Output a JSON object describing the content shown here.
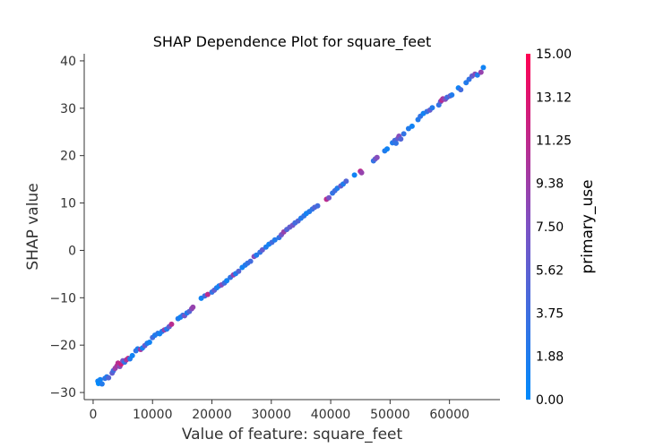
{
  "chart_data": {
    "type": "scatter",
    "title": "SHAP Dependence Plot for square_feet",
    "xlabel": "Value of feature: square_feet",
    "ylabel": "SHAP value",
    "xlim": [
      -1500,
      68500
    ],
    "ylim": [
      -31.5,
      41.5
    ],
    "xticks": [
      0,
      10000,
      20000,
      30000,
      40000,
      50000,
      60000
    ],
    "yticks": [
      -30,
      -20,
      -10,
      0,
      10,
      20,
      30,
      40
    ],
    "grid": false,
    "colorbar": {
      "label": "primary_use",
      "range": [
        0,
        15
      ],
      "ticks": [
        "0.00",
        "1.88",
        "3.75",
        "5.62",
        "7.50",
        "9.38",
        "11.25",
        "13.12",
        "15.00"
      ],
      "colors": {
        "low": "#008afb",
        "mid": "#7c52c4",
        "high": "#ff0052"
      }
    },
    "points": [
      [
        800,
        -27.6,
        1
      ],
      [
        900,
        -28.1,
        0
      ],
      [
        1200,
        -27.3,
        1
      ],
      [
        1500,
        -28.2,
        2
      ],
      [
        2000,
        -27.0,
        3
      ],
      [
        2300,
        -26.7,
        2
      ],
      [
        2600,
        -26.9,
        5
      ],
      [
        3200,
        -25.9,
        6
      ],
      [
        3400,
        -25.4,
        4
      ],
      [
        3700,
        -24.9,
        9
      ],
      [
        4000,
        -24.4,
        10
      ],
      [
        4200,
        -23.8,
        11
      ],
      [
        4500,
        -24.5,
        8
      ],
      [
        4700,
        -24.0,
        12
      ],
      [
        5000,
        -23.3,
        7
      ],
      [
        5300,
        -23.6,
        3
      ],
      [
        5600,
        -23.1,
        10
      ],
      [
        5900,
        -22.8,
        11
      ],
      [
        6200,
        -22.9,
        2
      ],
      [
        6600,
        -22.2,
        1
      ],
      [
        7200,
        -21.2,
        3
      ],
      [
        7500,
        -20.8,
        2
      ],
      [
        8000,
        -20.9,
        10
      ],
      [
        8300,
        -20.6,
        1
      ],
      [
        8700,
        -20.1,
        6
      ],
      [
        9100,
        -19.6,
        2
      ],
      [
        9500,
        -19.4,
        1
      ],
      [
        10000,
        -18.4,
        4
      ],
      [
        10400,
        -17.9,
        2
      ],
      [
        10900,
        -17.5,
        3
      ],
      [
        11200,
        -17.6,
        1
      ],
      [
        11600,
        -17.1,
        2
      ],
      [
        12000,
        -16.8,
        9
      ],
      [
        12400,
        -16.6,
        2
      ],
      [
        12800,
        -16.1,
        6
      ],
      [
        13200,
        -15.6,
        11
      ],
      [
        14300,
        -14.4,
        2
      ],
      [
        14700,
        -14.1,
        1
      ],
      [
        15100,
        -13.7,
        3
      ],
      [
        15400,
        -13.8,
        7
      ],
      [
        15800,
        -13.2,
        2
      ],
      [
        16200,
        -12.9,
        5
      ],
      [
        16600,
        -12.3,
        8
      ],
      [
        16800,
        -12.0,
        9
      ],
      [
        18200,
        -10.1,
        1
      ],
      [
        18800,
        -9.6,
        4
      ],
      [
        19300,
        -9.3,
        11
      ],
      [
        20000,
        -8.8,
        3
      ],
      [
        20400,
        -8.4,
        6
      ],
      [
        20800,
        -7.9,
        2
      ],
      [
        21200,
        -7.5,
        1
      ],
      [
        21600,
        -7.3,
        8
      ],
      [
        22100,
        -6.9,
        4
      ],
      [
        22500,
        -6.4,
        1
      ],
      [
        23100,
        -5.7,
        3
      ],
      [
        23600,
        -5.2,
        9
      ],
      [
        24000,
        -4.9,
        2
      ],
      [
        24500,
        -4.4,
        5
      ],
      [
        25100,
        -3.6,
        1
      ],
      [
        25600,
        -3.1,
        2
      ],
      [
        26000,
        -2.7,
        3
      ],
      [
        26500,
        -2.3,
        4
      ],
      [
        27100,
        -1.3,
        8
      ],
      [
        27500,
        -1.0,
        2
      ],
      [
        28100,
        -0.4,
        3
      ],
      [
        28500,
        0.1,
        6
      ],
      [
        29100,
        0.7,
        2
      ],
      [
        29600,
        1.3,
        1
      ],
      [
        30100,
        1.7,
        4
      ],
      [
        30600,
        2.2,
        2
      ],
      [
        31300,
        2.7,
        3
      ],
      [
        31700,
        3.3,
        7
      ],
      [
        32100,
        3.9,
        9
      ],
      [
        32600,
        4.4,
        5
      ],
      [
        33100,
        4.9,
        6
      ],
      [
        33600,
        5.3,
        7
      ],
      [
        34000,
        5.8,
        4
      ],
      [
        34500,
        6.2,
        5
      ],
      [
        35000,
        6.8,
        2
      ],
      [
        35500,
        7.3,
        3
      ],
      [
        35900,
        7.8,
        1
      ],
      [
        36400,
        8.2,
        2
      ],
      [
        36900,
        8.7,
        3
      ],
      [
        37300,
        9.1,
        5
      ],
      [
        37800,
        9.4,
        4
      ],
      [
        39300,
        10.8,
        11
      ],
      [
        39700,
        11.1,
        7
      ],
      [
        40300,
        12.1,
        3
      ],
      [
        40700,
        12.6,
        4
      ],
      [
        41100,
        13.1,
        2
      ],
      [
        41700,
        13.6,
        6
      ],
      [
        42100,
        14.0,
        2
      ],
      [
        42600,
        14.6,
        5
      ],
      [
        44000,
        15.9,
        1
      ],
      [
        45000,
        16.7,
        11
      ],
      [
        45200,
        16.4,
        9
      ],
      [
        47200,
        18.9,
        3
      ],
      [
        47500,
        19.3,
        6
      ],
      [
        47800,
        19.6,
        8
      ],
      [
        49100,
        21.0,
        2
      ],
      [
        49500,
        21.4,
        1
      ],
      [
        50400,
        22.7,
        2
      ],
      [
        50800,
        23.2,
        4
      ],
      [
        51000,
        22.6,
        3
      ],
      [
        51300,
        23.6,
        6
      ],
      [
        51500,
        24.1,
        8
      ],
      [
        51800,
        23.5,
        5
      ],
      [
        52300,
        24.6,
        3
      ],
      [
        53100,
        25.7,
        2
      ],
      [
        53700,
        26.2,
        1
      ],
      [
        54700,
        27.6,
        2
      ],
      [
        55100,
        28.3,
        3
      ],
      [
        55600,
        28.9,
        1
      ],
      [
        56200,
        29.3,
        3
      ],
      [
        56700,
        29.6,
        6
      ],
      [
        57100,
        30.1,
        2
      ],
      [
        58200,
        30.7,
        3
      ],
      [
        58500,
        31.4,
        6
      ],
      [
        58700,
        31.7,
        11
      ],
      [
        58900,
        32.0,
        10
      ],
      [
        59300,
        31.9,
        8
      ],
      [
        59600,
        32.3,
        4
      ],
      [
        60100,
        32.6,
        6
      ],
      [
        60400,
        32.8,
        2
      ],
      [
        61500,
        34.3,
        1
      ],
      [
        61900,
        33.9,
        4
      ],
      [
        62800,
        35.4,
        2
      ],
      [
        63300,
        36.1,
        3
      ],
      [
        63800,
        36.8,
        6
      ],
      [
        64300,
        37.2,
        8
      ],
      [
        64700,
        37.0,
        2
      ],
      [
        65300,
        37.6,
        9
      ],
      [
        65700,
        38.6,
        1
      ]
    ]
  }
}
